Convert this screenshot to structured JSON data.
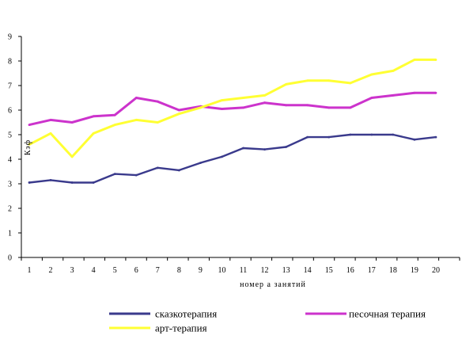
{
  "chart_data": {
    "type": "line",
    "title": "",
    "xlabel": "номер а занятий",
    "ylabel": "Кэф",
    "x": [
      1,
      2,
      3,
      4,
      5,
      6,
      7,
      8,
      9,
      10,
      11,
      12,
      13,
      14,
      15,
      16,
      17,
      18,
      19,
      20
    ],
    "x_tick_labels": [
      "1",
      "2",
      "3",
      "4",
      "5",
      "6",
      "7",
      "8",
      "9",
      "10",
      "11",
      "12",
      "13",
      "14",
      "15",
      "16",
      "17",
      "18",
      "19",
      "20"
    ],
    "y_ticks": [
      "0",
      "1",
      "2",
      "3",
      "4",
      "5",
      "6",
      "7",
      "8",
      "9"
    ],
    "ylim": [
      0,
      9
    ],
    "grid": false,
    "legend_position": "bottom",
    "series": [
      {
        "name": "сказкотерапия",
        "color": "#3a3a8c",
        "values": [
          3.05,
          3.15,
          3.05,
          3.05,
          3.4,
          3.35,
          3.65,
          3.55,
          3.85,
          4.1,
          4.45,
          4.4,
          4.5,
          4.9,
          4.9,
          5.0,
          5.0,
          5.0,
          4.8,
          4.9
        ]
      },
      {
        "name": "песочная терапия",
        "color": "#cc33cc",
        "values": [
          5.4,
          5.6,
          5.5,
          5.75,
          5.8,
          6.5,
          6.35,
          6.0,
          6.15,
          6.05,
          6.1,
          6.3,
          6.2,
          6.2,
          6.1,
          6.1,
          6.5,
          6.6,
          6.7,
          6.7
        ]
      },
      {
        "name": "арт-терапия",
        "color": "#ffff33",
        "values": [
          4.6,
          5.05,
          4.1,
          5.05,
          5.4,
          5.6,
          5.5,
          5.85,
          6.1,
          6.4,
          6.5,
          6.6,
          7.05,
          7.2,
          7.2,
          7.1,
          7.45,
          7.6,
          8.05,
          8.05
        ]
      }
    ]
  }
}
